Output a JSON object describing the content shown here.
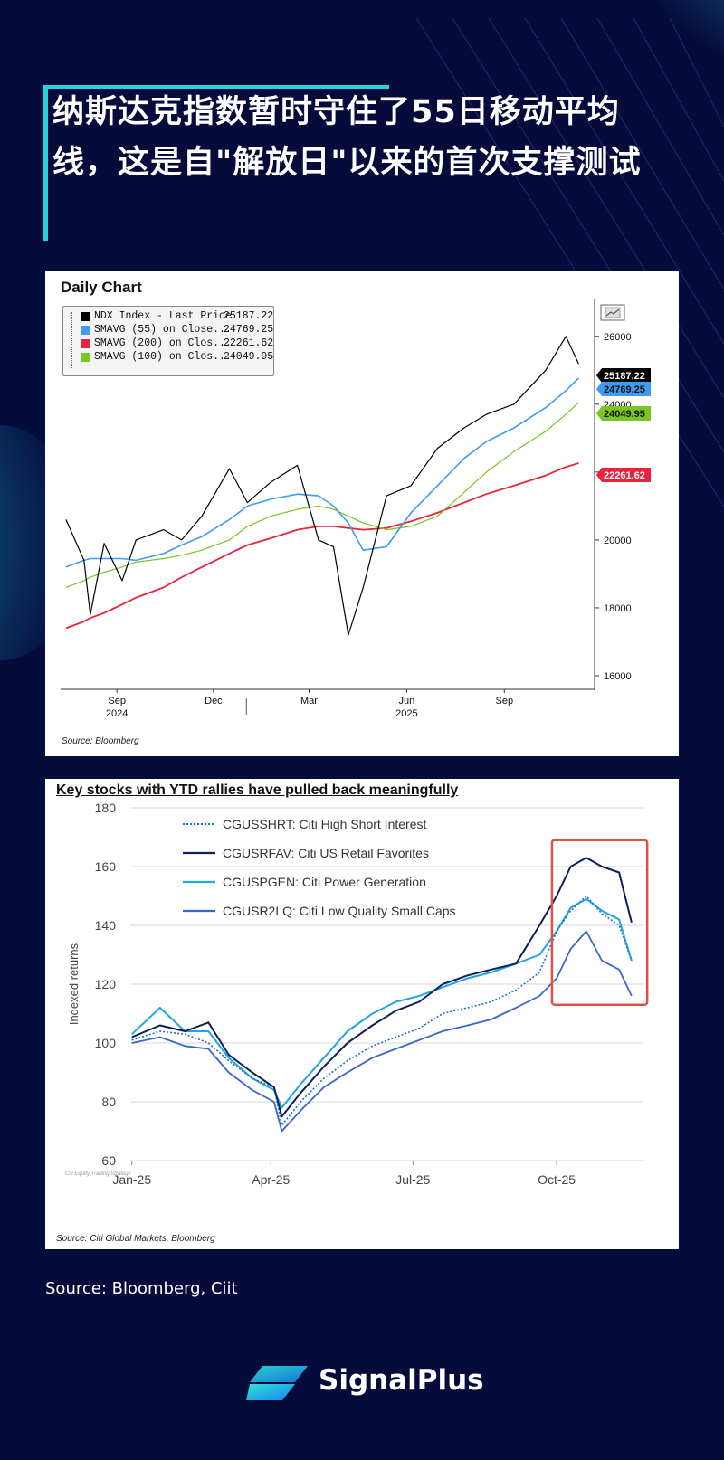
{
  "title": "纳斯达克指数暂时守住了55日移动平均线，这是自\"解放日\"以来的首次支撑测试",
  "colors": {
    "background": "#050b3a",
    "accent": "#23d4dc"
  },
  "chart1": {
    "title": "Daily Chart",
    "source": "Source: Bloomberg",
    "legend": [
      {
        "name": "NDX Index - Last Price",
        "value": "25187.22",
        "color": "#000000"
      },
      {
        "name": "SMAVG (55)  on Close...",
        "value": "24769.25",
        "color": "#3e9bf0"
      },
      {
        "name": "SMAVG (200)  on Clos...",
        "value": "22261.62",
        "color": "#e8243c"
      },
      {
        "name": "SMAVG (100)  on Clos...",
        "value": "24049.95",
        "color": "#79c522"
      }
    ],
    "ytick_labels": [
      "26000",
      "24000",
      "22000",
      "20000",
      "18000",
      "16000"
    ],
    "xtick_labels": [
      "Sep",
      "Dec",
      "Mar",
      "Jun",
      "Sep"
    ],
    "year_labels": [
      "2024",
      "2025"
    ],
    "axis_labels": [
      "25187.22",
      "24769.25",
      "24049.95",
      "22261.62"
    ]
  },
  "chart2": {
    "title": "Key stocks with YTD rallies have pulled back meaningfully",
    "source": "Source: Citi Global Markets, Bloomberg",
    "watermark": "Citi Equity Trading Strategy",
    "legend": [
      {
        "name": "CGUSSHRT: Citi High Short Interest",
        "color": "#1f6fd0",
        "style": "dotted"
      },
      {
        "name": "CGUSRFAV: Citi US Retail Favorites",
        "color": "#0b1f5c",
        "style": "solid"
      },
      {
        "name": "CGUSPGEN: Citi Power Generation",
        "color": "#22a5e0",
        "style": "solid"
      },
      {
        "name": "CGUSR2LQ: Citi Low Quality Small Caps",
        "color": "#3a66c8",
        "style": "solid"
      }
    ]
  },
  "chart_data": [
    {
      "type": "line",
      "title": "Daily Chart",
      "xlabel": "",
      "ylabel": "",
      "x": [
        "2024-07-15",
        "2024-08-01",
        "2024-08-07",
        "2024-08-20",
        "2024-09-06",
        "2024-09-19",
        "2024-10-15",
        "2024-11-01",
        "2024-11-20",
        "2024-12-16",
        "2025-01-02",
        "2025-01-24",
        "2025-02-18",
        "2025-03-10",
        "2025-03-24",
        "2025-04-07",
        "2025-04-21",
        "2025-05-13",
        "2025-06-05",
        "2025-06-30",
        "2025-07-25",
        "2025-08-15",
        "2025-09-10",
        "2025-10-10",
        "2025-10-29",
        "2025-11-10"
      ],
      "ylim": [
        15600,
        26900
      ],
      "series": [
        {
          "name": "NDX Index - Last Price",
          "values": [
            20600,
            19400,
            17800,
            19900,
            18800,
            20000,
            20300,
            20000,
            20700,
            22100,
            21100,
            21700,
            22200,
            20000,
            19800,
            17200,
            18600,
            21300,
            21600,
            22700,
            23300,
            23700,
            24000,
            25000,
            26000,
            25187
          ]
        },
        {
          "name": "SMAVG (55)",
          "values": [
            19200,
            19400,
            19450,
            19450,
            19450,
            19400,
            19600,
            19850,
            20100,
            20600,
            21000,
            21200,
            21350,
            21300,
            21000,
            20500,
            19700,
            19800,
            20800,
            21600,
            22400,
            22900,
            23300,
            23900,
            24400,
            24769
          ]
        },
        {
          "name": "SMAVG (200)",
          "values": [
            17400,
            17600,
            17700,
            17850,
            18100,
            18300,
            18600,
            18900,
            19200,
            19600,
            19850,
            20050,
            20300,
            20400,
            20400,
            20350,
            20300,
            20350,
            20550,
            20800,
            21100,
            21350,
            21600,
            21900,
            22150,
            22262
          ]
        },
        {
          "name": "SMAVG (100)",
          "values": [
            18600,
            18800,
            18900,
            19050,
            19200,
            19350,
            19450,
            19550,
            19700,
            20000,
            20400,
            20700,
            20900,
            21000,
            20900,
            20700,
            20500,
            20300,
            20400,
            20700,
            21400,
            22000,
            22600,
            23200,
            23700,
            24050
          ]
        }
      ]
    },
    {
      "type": "line",
      "title": "Key stocks with YTD rallies have pulled back meaningfully",
      "xlabel": "",
      "ylabel": "Indexed returns",
      "x_tick_labels": [
        "Jan-25",
        "Apr-25",
        "Jul-25",
        "Oct-25"
      ],
      "y_tick_labels": [
        "180",
        "160",
        "140",
        "120",
        "100",
        "80",
        "60"
      ],
      "x": [
        "2025-01-02",
        "2025-01-20",
        "2025-02-05",
        "2025-02-20",
        "2025-03-05",
        "2025-03-20",
        "2025-04-03",
        "2025-04-08",
        "2025-04-20",
        "2025-05-05",
        "2025-05-20",
        "2025-06-05",
        "2025-06-20",
        "2025-07-05",
        "2025-07-20",
        "2025-08-05",
        "2025-08-20",
        "2025-09-05",
        "2025-09-20",
        "2025-10-01",
        "2025-10-10",
        "2025-10-20",
        "2025-10-30",
        "2025-11-10",
        "2025-11-18"
      ],
      "ylim": [
        60,
        180
      ],
      "series": [
        {
          "name": "CGUSSHRT: Citi High Short Interest",
          "values": [
            101,
            104,
            103,
            100,
            94,
            88,
            85,
            72,
            80,
            88,
            94,
            99,
            102,
            105,
            110,
            112,
            114,
            118,
            124,
            138,
            145,
            150,
            144,
            140,
            128
          ]
        },
        {
          "name": "CGUSRFAV: Citi US Retail Favorites",
          "values": [
            102,
            106,
            104,
            107,
            96,
            90,
            85,
            75,
            83,
            92,
            100,
            106,
            111,
            114,
            120,
            123,
            125,
            127,
            140,
            150,
            160,
            163,
            160,
            158,
            141
          ]
        },
        {
          "name": "CGUSPGEN: Citi Power Generation",
          "values": [
            103,
            112,
            104,
            104,
            95,
            88,
            84,
            78,
            86,
            95,
            104,
            110,
            114,
            116,
            119,
            122,
            124,
            127,
            130,
            138,
            146,
            149,
            145,
            142,
            128
          ]
        },
        {
          "name": "CGUSR2LQ: Citi Low Quality Small Caps",
          "values": [
            100,
            102,
            99,
            98,
            90,
            84,
            80,
            70,
            77,
            85,
            90,
            95,
            98,
            101,
            104,
            106,
            108,
            112,
            116,
            122,
            132,
            138,
            128,
            125,
            116
          ]
        }
      ]
    }
  ],
  "source_text": "Source: Bloomberg, Ciit",
  "brand": {
    "name": "SignalPlus"
  }
}
